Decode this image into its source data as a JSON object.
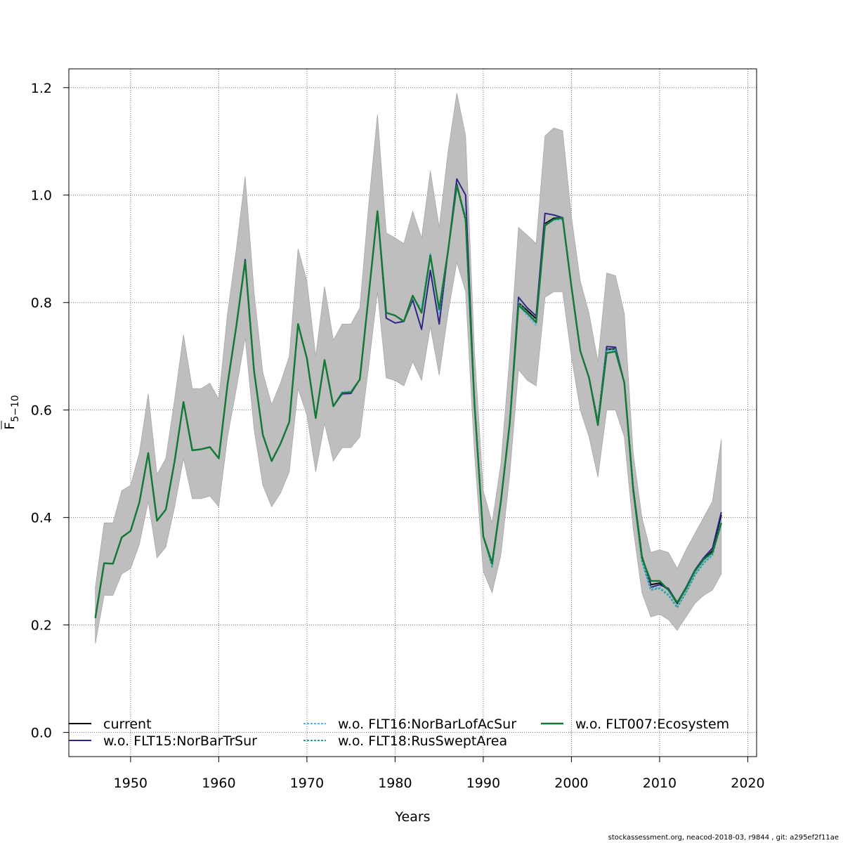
{
  "chart_data": {
    "type": "line",
    "xlabel": "Years",
    "ylabel_main": "F",
    "ylabel_sub": "5−10",
    "xlim": [
      1943,
      2021
    ],
    "ylim": [
      -0.045,
      1.235
    ],
    "x_ticks": [
      1950,
      1960,
      1970,
      1980,
      1990,
      2000,
      2010,
      2020
    ],
    "y_ticks": [
      0.0,
      0.2,
      0.4,
      0.6,
      0.8,
      1.0,
      1.2
    ],
    "y_tick_labels": [
      "0.0",
      "0.2",
      "0.4",
      "0.6",
      "0.8",
      "1.0",
      "1.2"
    ],
    "grid": true,
    "legend_position": "bottom",
    "band_color": "#bebebe",
    "years": [
      1946,
      1947,
      1948,
      1949,
      1950,
      1951,
      1952,
      1953,
      1954,
      1955,
      1956,
      1957,
      1958,
      1959,
      1960,
      1961,
      1962,
      1963,
      1964,
      1965,
      1966,
      1967,
      1968,
      1969,
      1970,
      1971,
      1972,
      1973,
      1974,
      1975,
      1976,
      1977,
      1978,
      1979,
      1980,
      1981,
      1982,
      1983,
      1984,
      1985,
      1986,
      1987,
      1988,
      1989,
      1990,
      1991,
      1992,
      1993,
      1994,
      1995,
      1996,
      1997,
      1998,
      1999,
      2000,
      2001,
      2002,
      2003,
      2004,
      2005,
      2006,
      2007,
      2008,
      2009,
      2010,
      2011,
      2012,
      2013,
      2014,
      2015,
      2016,
      2017
    ],
    "band_upper": [
      0.27,
      0.39,
      0.39,
      0.45,
      0.46,
      0.52,
      0.63,
      0.48,
      0.51,
      0.62,
      0.74,
      0.64,
      0.64,
      0.65,
      0.62,
      0.78,
      0.9,
      1.035,
      0.82,
      0.67,
      0.61,
      0.65,
      0.7,
      0.9,
      0.84,
      0.7,
      0.83,
      0.73,
      0.76,
      0.76,
      0.79,
      0.98,
      1.15,
      0.93,
      0.92,
      0.91,
      0.97,
      0.92,
      1.045,
      0.94,
      1.08,
      1.19,
      1.11,
      0.71,
      0.45,
      0.39,
      0.5,
      0.7,
      0.94,
      0.925,
      0.91,
      1.11,
      1.125,
      1.12,
      0.96,
      0.84,
      0.78,
      0.69,
      0.855,
      0.85,
      0.78,
      0.52,
      0.4,
      0.335,
      0.34,
      0.335,
      0.305,
      0.34,
      0.37,
      0.4,
      0.43,
      0.545
    ],
    "band_lower": [
      0.165,
      0.255,
      0.255,
      0.295,
      0.305,
      0.35,
      0.43,
      0.325,
      0.345,
      0.42,
      0.51,
      0.435,
      0.435,
      0.44,
      0.42,
      0.55,
      0.64,
      0.735,
      0.565,
      0.46,
      0.42,
      0.445,
      0.485,
      0.64,
      0.59,
      0.485,
      0.575,
      0.505,
      0.53,
      0.53,
      0.55,
      0.68,
      0.82,
      0.66,
      0.655,
      0.645,
      0.69,
      0.655,
      0.755,
      0.665,
      0.78,
      0.875,
      0.82,
      0.52,
      0.3,
      0.26,
      0.33,
      0.48,
      0.675,
      0.655,
      0.645,
      0.81,
      0.82,
      0.82,
      0.7,
      0.6,
      0.55,
      0.475,
      0.6,
      0.6,
      0.55,
      0.38,
      0.26,
      0.215,
      0.22,
      0.21,
      0.19,
      0.215,
      0.24,
      0.255,
      0.265,
      0.295
    ],
    "series": [
      {
        "name": "current",
        "color": "#000000",
        "dash": "",
        "width": 2,
        "values": [
          0.213,
          0.315,
          0.314,
          0.363,
          0.375,
          0.428,
          0.52,
          0.394,
          0.415,
          0.505,
          0.615,
          0.525,
          0.527,
          0.531,
          0.51,
          0.648,
          0.757,
          0.877,
          0.673,
          0.554,
          0.505,
          0.537,
          0.578,
          0.76,
          0.696,
          0.585,
          0.693,
          0.607,
          0.632,
          0.633,
          0.657,
          0.812,
          0.97,
          0.781,
          0.776,
          0.765,
          0.813,
          0.781,
          0.888,
          0.787,
          0.895,
          1.02,
          0.955,
          0.612,
          0.365,
          0.315,
          0.43,
          0.575,
          0.8,
          0.785,
          0.77,
          0.947,
          0.957,
          0.958,
          0.83,
          0.71,
          0.66,
          0.578,
          0.713,
          0.714,
          0.651,
          0.455,
          0.328,
          0.275,
          0.278,
          0.265,
          0.24,
          0.268,
          0.3,
          0.322,
          0.338,
          0.405
        ]
      },
      {
        "name": "w.o. FLT15:NorBarTrSur",
        "color": "#2c2684",
        "dash": "",
        "width": 2,
        "values": [
          0.213,
          0.315,
          0.314,
          0.363,
          0.375,
          0.428,
          0.52,
          0.394,
          0.415,
          0.505,
          0.615,
          0.525,
          0.527,
          0.531,
          0.51,
          0.648,
          0.757,
          0.88,
          0.673,
          0.554,
          0.505,
          0.537,
          0.578,
          0.76,
          0.696,
          0.585,
          0.693,
          0.607,
          0.63,
          0.631,
          0.657,
          0.812,
          0.97,
          0.771,
          0.762,
          0.765,
          0.805,
          0.75,
          0.86,
          0.76,
          0.895,
          1.03,
          1.0,
          0.612,
          0.365,
          0.315,
          0.43,
          0.575,
          0.81,
          0.79,
          0.775,
          0.966,
          0.963,
          0.958,
          0.83,
          0.71,
          0.66,
          0.578,
          0.718,
          0.717,
          0.651,
          0.455,
          0.328,
          0.27,
          0.275,
          0.268,
          0.242,
          0.27,
          0.302,
          0.325,
          0.343,
          0.41
        ]
      },
      {
        "name": "w.o. FLT16:NorBarLofAcSur",
        "color": "#56b4e9",
        "dash": "3,2",
        "width": 2,
        "values": [
          0.213,
          0.315,
          0.314,
          0.363,
          0.375,
          0.428,
          0.52,
          0.394,
          0.415,
          0.505,
          0.615,
          0.525,
          0.527,
          0.531,
          0.51,
          0.648,
          0.757,
          0.877,
          0.673,
          0.554,
          0.505,
          0.537,
          0.578,
          0.76,
          0.696,
          0.585,
          0.693,
          0.607,
          0.634,
          0.635,
          0.657,
          0.812,
          0.97,
          0.781,
          0.776,
          0.765,
          0.81,
          0.79,
          0.892,
          0.78,
          0.895,
          1.015,
          0.96,
          0.612,
          0.365,
          0.31,
          0.43,
          0.575,
          0.795,
          0.775,
          0.758,
          0.943,
          0.953,
          0.955,
          0.83,
          0.71,
          0.66,
          0.578,
          0.71,
          0.711,
          0.651,
          0.45,
          0.322,
          0.268,
          0.27,
          0.258,
          0.235,
          0.262,
          0.295,
          0.318,
          0.332,
          0.395
        ]
      },
      {
        "name": "w.o. FLT18:RusSweptArea",
        "color": "#2aa090",
        "dash": "3,2",
        "width": 2,
        "values": [
          0.213,
          0.315,
          0.314,
          0.363,
          0.375,
          0.428,
          0.52,
          0.394,
          0.415,
          0.505,
          0.615,
          0.525,
          0.527,
          0.531,
          0.51,
          0.648,
          0.757,
          0.877,
          0.673,
          0.554,
          0.505,
          0.537,
          0.578,
          0.76,
          0.696,
          0.585,
          0.693,
          0.607,
          0.632,
          0.633,
          0.657,
          0.812,
          0.97,
          0.781,
          0.776,
          0.765,
          0.813,
          0.781,
          0.888,
          0.787,
          0.895,
          1.018,
          0.95,
          0.612,
          0.365,
          0.308,
          0.43,
          0.575,
          0.8,
          0.782,
          0.765,
          0.945,
          0.955,
          0.955,
          0.83,
          0.71,
          0.66,
          0.578,
          0.712,
          0.713,
          0.651,
          0.448,
          0.318,
          0.265,
          0.268,
          0.255,
          0.232,
          0.26,
          0.292,
          0.315,
          0.33,
          0.39
        ]
      },
      {
        "name": "w.o. FLT007:Ecosystem",
        "color": "#127a35",
        "dash": "",
        "width": 2.4,
        "values": [
          0.213,
          0.315,
          0.314,
          0.363,
          0.375,
          0.428,
          0.52,
          0.394,
          0.415,
          0.505,
          0.615,
          0.525,
          0.527,
          0.531,
          0.51,
          0.648,
          0.757,
          0.877,
          0.673,
          0.554,
          0.505,
          0.537,
          0.578,
          0.76,
          0.696,
          0.585,
          0.693,
          0.607,
          0.632,
          0.633,
          0.657,
          0.812,
          0.97,
          0.781,
          0.776,
          0.765,
          0.813,
          0.781,
          0.888,
          0.787,
          0.895,
          1.018,
          0.955,
          0.612,
          0.365,
          0.315,
          0.43,
          0.575,
          0.795,
          0.78,
          0.763,
          0.943,
          0.955,
          0.958,
          0.83,
          0.71,
          0.66,
          0.572,
          0.706,
          0.709,
          0.651,
          0.452,
          0.325,
          0.282,
          0.282,
          0.265,
          0.242,
          0.268,
          0.3,
          0.322,
          0.335,
          0.39
        ]
      }
    ]
  },
  "footer": "stockassessment.org, neacod-2018-03, r9844 , git: a295ef2f11ae"
}
